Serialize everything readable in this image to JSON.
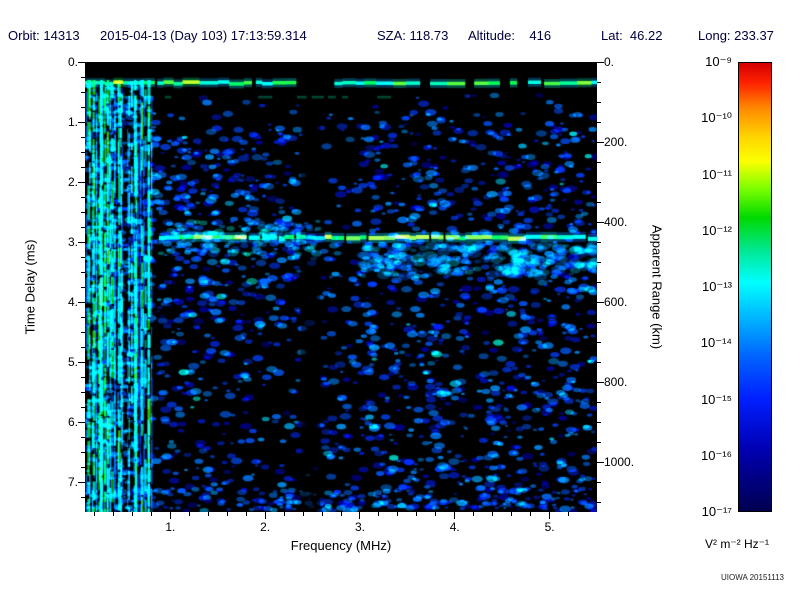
{
  "header": {
    "orbit": "Orbit: 14313",
    "datetime": "2015-04-13 (Day 103) 17:13:59.314",
    "sza": "SZA: 118.73",
    "altitude": "Altitude:    416",
    "lat": "Lat:  46.22",
    "long": "Long: 233.37"
  },
  "colors": {
    "header_text": "#00003c",
    "axis_text": "#000000",
    "plot_background": "#000000",
    "page_background": "#ffffff"
  },
  "chart_data": {
    "type": "heatmap",
    "subtype": "radar-sounder-ionogram-spectrogram",
    "title": "",
    "xlabel": "Frequency (MHz)",
    "ylabel_left": "Time Delay (ms)",
    "ylabel_right": "Apparent Range (km)",
    "x_range_mhz": [
      0.1,
      5.5
    ],
    "y_range_ms": [
      0,
      7.5
    ],
    "y2_range_km": [
      0,
      1125
    ],
    "grid": false,
    "x_ticks": {
      "values": [
        1,
        2,
        3,
        4,
        5
      ],
      "labels": [
        "1.",
        "2.",
        "3.",
        "4.",
        "5."
      ]
    },
    "y_ticks": {
      "values": [
        0,
        1,
        2,
        3,
        4,
        5,
        6,
        7
      ],
      "labels": [
        "0.",
        "1.",
        "2.",
        "3.",
        "4.",
        "5.",
        "6.",
        "7."
      ]
    },
    "y2_ticks": {
      "values": [
        0,
        200,
        400,
        600,
        800,
        1000
      ],
      "labels": [
        "0.",
        "200.",
        "400.",
        "600.",
        "800.",
        "1000."
      ]
    },
    "colorbar": {
      "scale": "log",
      "range": [
        1e-17,
        1e-09
      ],
      "tick_labels": [
        "10⁻⁹",
        "10⁻¹⁰",
        "10⁻¹¹",
        "10⁻¹²",
        "10⁻¹³",
        "10⁻¹⁴",
        "10⁻¹⁵",
        "10⁻¹⁶",
        "10⁻¹⁷"
      ],
      "units_label": "V² m⁻² Hz⁻¹",
      "position": "right",
      "gradient_stops": [
        {
          "pos": 0.0,
          "color": "#d40000"
        },
        {
          "pos": 0.045,
          "color": "#ff2200"
        },
        {
          "pos": 0.1,
          "color": "#ff8800"
        },
        {
          "pos": 0.165,
          "color": "#ffd500"
        },
        {
          "pos": 0.22,
          "color": "#fbff00"
        },
        {
          "pos": 0.28,
          "color": "#7dff00"
        },
        {
          "pos": 0.345,
          "color": "#00d900"
        },
        {
          "pos": 0.42,
          "color": "#00e896"
        },
        {
          "pos": 0.49,
          "color": "#00ffff"
        },
        {
          "pos": 0.57,
          "color": "#00b4ff"
        },
        {
          "pos": 0.655,
          "color": "#0064ff"
        },
        {
          "pos": 0.75,
          "color": "#001fff"
        },
        {
          "pos": 0.86,
          "color": "#0000b4"
        },
        {
          "pos": 1.0,
          "color": "#000050"
        }
      ]
    },
    "features": {
      "seed": 20151113,
      "surface_reflection_ms": 0.35,
      "secondary_trace_ms": 0.58,
      "ionospheric_echo_ms": 2.93,
      "ionospheric_echo_freq_range_mhz": [
        0.88,
        5.5
      ],
      "plasma_stripe_range_mhz": [
        0.1,
        0.82
      ],
      "bright_stripe_freqs_mhz": [
        0.135,
        0.19,
        0.27,
        0.34,
        0.46,
        0.63,
        0.7,
        0.77
      ],
      "interference_gap_mhz": [
        2.38,
        2.58
      ],
      "noise_floor_range": [
        1e-17,
        1e-15
      ],
      "echo_intensity_range": [
        1e-13,
        1e-11
      ],
      "note": "Black background with scattered blue/cyan noise speckle; bright green-cyan horizontal echo trace near 0.35 ms across all frequencies; bright green ionospheric echo trace at ~2.93 ms from ~0.9 MHz to 5.5 MHz; dense vertical electron plasma oscillation stripes below 0.8 MHz; dark interference column near 2.4-2.6 MHz"
    }
  },
  "footer": {
    "credit": "UIOWA 20151113"
  }
}
